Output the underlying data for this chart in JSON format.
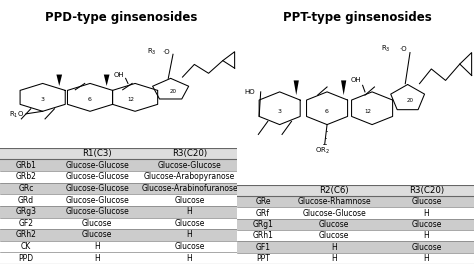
{
  "title_left": "PPD-type ginsenosides",
  "title_right": "PPT-type ginsenosides",
  "ppd_header": [
    "",
    "R1(C3)",
    "R3(C20)"
  ],
  "ppd_rows": [
    [
      "GRb1",
      "Glucose-Glucose",
      "Glucose-Glucose"
    ],
    [
      "GRb2",
      "Glucose-Glucose",
      "Glucose-Arabopyranose"
    ],
    [
      "GRc",
      "Glucose-Glucose",
      "Glucose-Arabinofuranose"
    ],
    [
      "GRd",
      "Glucose-Glucose",
      "Glucose"
    ],
    [
      "GRg3",
      "Glucose-Glucose",
      "H"
    ],
    [
      "GF2",
      "Glucose",
      "Glucose"
    ],
    [
      "GRh2",
      "Glucose",
      "H"
    ],
    [
      "CK",
      "H",
      "Glucose"
    ],
    [
      "PPD",
      "H",
      "H"
    ]
  ],
  "ppt_header": [
    "",
    "R2(C6)",
    "R3(C20)"
  ],
  "ppt_rows": [
    [
      "GRe",
      "Glucose-Rhamnose",
      "Glucose"
    ],
    [
      "GRf",
      "Glucose-Glucose",
      "H"
    ],
    [
      "GRg1",
      "Glucose",
      "Glucose"
    ],
    [
      "GRh1",
      "Glucose",
      "H"
    ],
    [
      "GF1",
      "H",
      "Glucose"
    ],
    [
      "PPT",
      "H",
      "H"
    ]
  ],
  "shaded_rows_ppd": [
    0,
    2,
    4,
    6
  ],
  "shaded_rows_ppt": [
    0,
    2,
    4
  ],
  "shade_color": "#cccccc",
  "header_bg": "#dddddd",
  "line_color": "#666666",
  "bg_color": "#ffffff",
  "title_fontsize": 8.5,
  "table_fontsize": 5.5,
  "header_fontsize": 6.2
}
